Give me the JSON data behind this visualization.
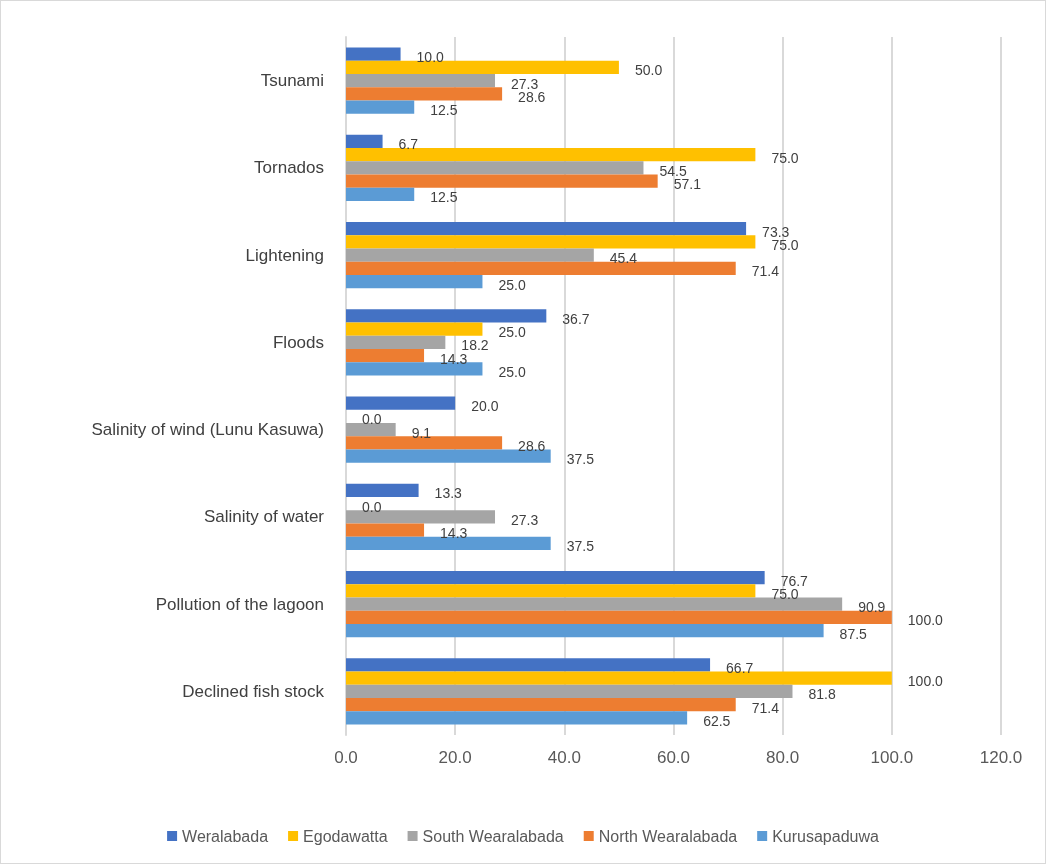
{
  "chart_data": {
    "type": "bar",
    "orientation": "horizontal",
    "categories": [
      "Tsunami",
      "Tornados",
      "Lightening",
      "Floods",
      "Salinity of wind (Lunu Kasuwa)",
      "Salinity of water",
      "Pollution of the lagoon",
      "Declined fish stock"
    ],
    "series": [
      {
        "name": "Weralabada",
        "color": "#4472c4",
        "values": [
          10.0,
          6.7,
          73.3,
          36.7,
          20.0,
          13.3,
          76.7,
          66.7
        ],
        "value_labels": [
          "10.0",
          "6.7",
          "73.3",
          "36.7",
          "20.0",
          "13.3",
          "76.7",
          "66.7"
        ]
      },
      {
        "name": "Egodawatta",
        "color": "#ffc000",
        "values": [
          50.0,
          75.0,
          75.0,
          25.0,
          0.0,
          0.0,
          75.0,
          100.0
        ],
        "value_labels": [
          "50.0",
          "75.0",
          "75.0",
          "25.0",
          "0.0",
          "0.0",
          "75.0",
          "100.0"
        ]
      },
      {
        "name": "South Wearalabada",
        "color": "#a5a5a5",
        "values": [
          27.3,
          54.5,
          45.4,
          18.2,
          9.1,
          27.3,
          90.9,
          81.8
        ],
        "value_labels": [
          "27.3",
          "54.5",
          "45.4",
          "18.2",
          "9.1",
          "27.3",
          "90.9",
          "81.8"
        ]
      },
      {
        "name": "North Wearalabada",
        "color": "#ed7d31",
        "values": [
          28.6,
          57.1,
          71.4,
          14.3,
          28.6,
          14.3,
          100.0,
          71.4
        ],
        "value_labels": [
          "28.6",
          "57.1",
          "71.4",
          "14.3",
          "28.6",
          "14.3",
          "100.0",
          "71.4"
        ]
      },
      {
        "name": "Kurusapaduwa",
        "color": "#5b9bd5",
        "values": [
          12.5,
          12.5,
          25.0,
          25.0,
          37.5,
          37.5,
          87.5,
          62.5
        ],
        "value_labels": [
          "12.5",
          "12.5",
          "25.0",
          "25.0",
          "37.5",
          "37.5",
          "87.5",
          "62.5"
        ]
      }
    ],
    "xlim": [
      0,
      120
    ],
    "xticks": [
      {
        "value": 0,
        "label": "0.0"
      },
      {
        "value": 20,
        "label": "20.0"
      },
      {
        "value": 40,
        "label": "40.0"
      },
      {
        "value": 60,
        "label": "60.0"
      },
      {
        "value": 80,
        "label": "80.0"
      },
      {
        "value": 100,
        "label": "100.0"
      },
      {
        "value": 120,
        "label": "120.0"
      }
    ],
    "grid": "x",
    "legend": "bottom"
  }
}
